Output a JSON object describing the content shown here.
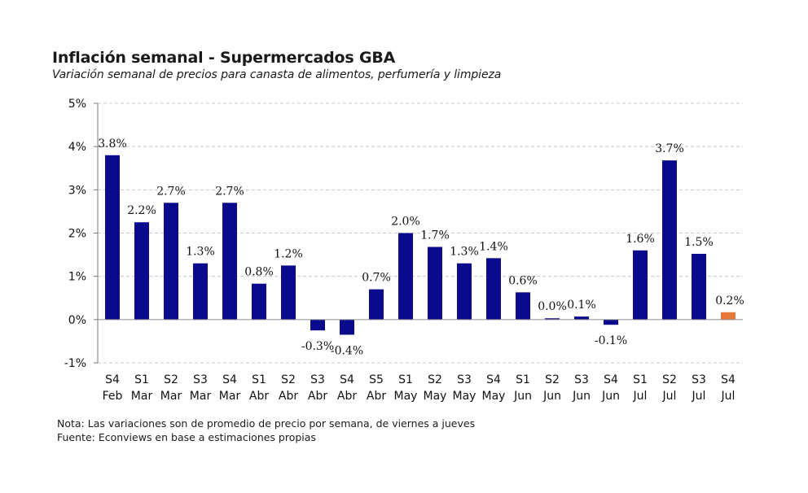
{
  "header": {
    "title": "Inflación semanal - Supermercados GBA",
    "subtitle": "Variación semanal de precios para canasta de alimentos, perfumería y limpieza"
  },
  "footer": {
    "note": "Nota: Las variaciones son de promedio de precio por semana, de viernes a jueves",
    "source": "Fuente: Econviews en base a estimaciones propias"
  },
  "colors": {
    "bar": "#0a0a8c",
    "highlight": "#e8773a",
    "grid": "#c8c8c8"
  },
  "chart_data": {
    "type": "bar",
    "title": "Inflación semanal - Supermercados GBA",
    "subtitle": "Variación semanal de precios para canasta de alimentos, perfumería y limpieza",
    "xlabel": "",
    "ylabel": "",
    "ylim": [
      -1,
      5
    ],
    "yticks": [
      "5%",
      "4%",
      "3%",
      "2%",
      "1%",
      "0%",
      "-1%"
    ],
    "ytick_values": [
      5,
      4,
      3,
      2,
      1,
      0,
      -1
    ],
    "grid": true,
    "legend": "none",
    "categories": [
      [
        "S4",
        "Feb"
      ],
      [
        "S1",
        "Mar"
      ],
      [
        "S2",
        "Mar"
      ],
      [
        "S3",
        "Mar"
      ],
      [
        "S4",
        "Mar"
      ],
      [
        "S1",
        "Abr"
      ],
      [
        "S2",
        "Abr"
      ],
      [
        "S3",
        "Abr"
      ],
      [
        "S4",
        "Abr"
      ],
      [
        "S5",
        "Abr"
      ],
      [
        "S1",
        "May"
      ],
      [
        "S2",
        "May"
      ],
      [
        "S3",
        "May"
      ],
      [
        "S4",
        "May"
      ],
      [
        "S1",
        "Jun"
      ],
      [
        "S2",
        "Jun"
      ],
      [
        "S3",
        "Jun"
      ],
      [
        "S4",
        "Jun"
      ],
      [
        "S1",
        "Jul"
      ],
      [
        "S2",
        "Jul"
      ],
      [
        "S3",
        "Jul"
      ],
      [
        "S4",
        "Jul"
      ]
    ],
    "values": [
      3.8,
      2.25,
      2.7,
      1.3,
      2.7,
      0.83,
      1.25,
      -0.25,
      -0.35,
      0.7,
      2.0,
      1.68,
      1.3,
      1.42,
      0.63,
      0.03,
      0.07,
      -0.12,
      1.6,
      3.68,
      1.52,
      0.17
    ],
    "labels": [
      "3.8%",
      "2.2%",
      "2.7%",
      "1.3%",
      "2.7%",
      "0.8%",
      "1.2%",
      "-0.3%",
      "-0.4%",
      "0.7%",
      "2.0%",
      "1.7%",
      "1.3%",
      "1.4%",
      "0.6%",
      "0.0%",
      "0.1%",
      "-0.1%",
      "1.6%",
      "3.7%",
      "1.5%",
      "0.2%"
    ],
    "highlight_index": 21
  }
}
